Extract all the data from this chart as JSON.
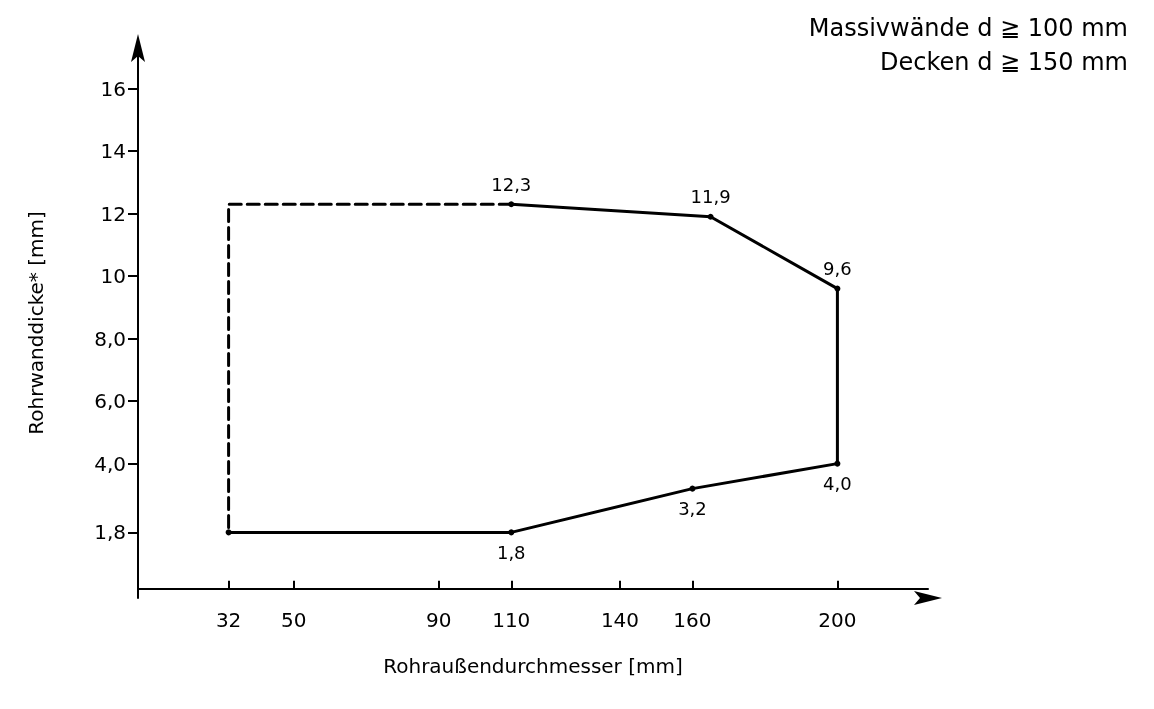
{
  "chart_data": {
    "type": "line",
    "xlabel": "Rohraußendurchmesser [mm]",
    "ylabel": "Rohrwanddicke* [mm]",
    "xlim": [
      7,
      225
    ],
    "ylim": [
      -0.3,
      17.3
    ],
    "xticks": [
      32,
      50,
      90,
      110,
      140,
      160,
      200
    ],
    "yticks": [
      {
        "value": 1.8,
        "label": "1,8"
      },
      {
        "value": 4,
        "label": "4,0"
      },
      {
        "value": 6,
        "label": "6,0"
      },
      {
        "value": 8,
        "label": "8,0"
      },
      10,
      12,
      14,
      16
    ],
    "grid": false,
    "series": [
      {
        "color": "#000000",
        "line_style": "solid",
        "marker": "circle",
        "x": [
          32,
          110,
          160,
          200,
          200,
          165,
          110
        ],
        "values": [
          1.8,
          1.8,
          3.2,
          4.0,
          9.6,
          11.9,
          12.3
        ],
        "value_labels": [
          null,
          "1,8",
          "3,2",
          "4,0",
          "9,6",
          "11,9",
          "12,3"
        ]
      },
      {
        "color": "#000000",
        "line_style": "dashed",
        "marker": "none",
        "x": [
          110,
          32,
          32
        ],
        "values": [
          12.3,
          12.3,
          1.8
        ]
      }
    ],
    "annotations": [
      "Massivwände d ≧ 100 mm",
      "Decken d ≧ 150 mm"
    ]
  }
}
